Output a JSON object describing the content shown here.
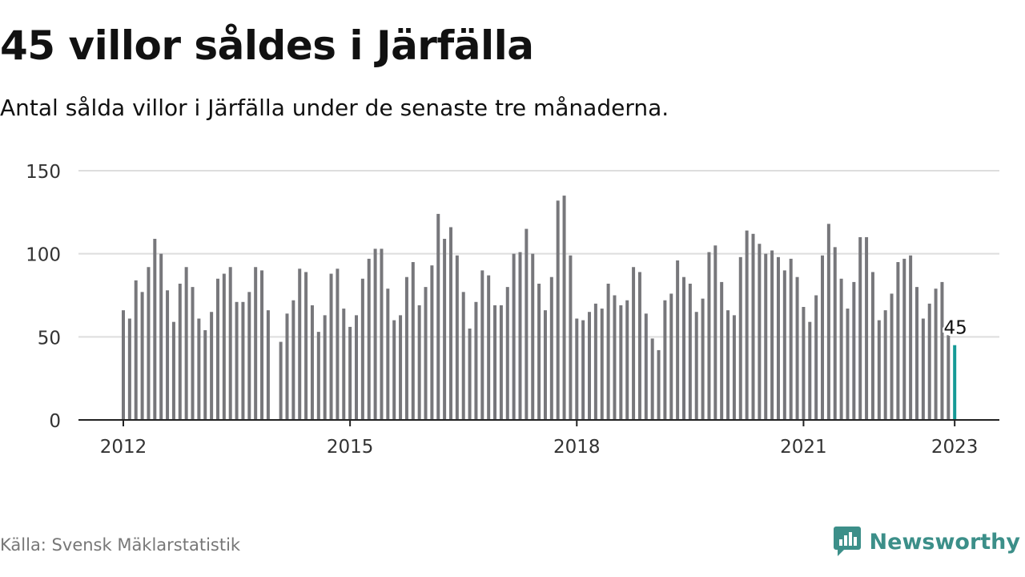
{
  "title": "45 villor såldes i Järfälla",
  "subtitle": "Antal sålda villor i Järfälla under de senaste tre månaderna.",
  "source": "Källa: Svensk Mäklarstatistik",
  "logo": {
    "text": "Newsworthy",
    "icon": "newsworthy-logo-icon"
  },
  "colors": {
    "bar": "#77777b",
    "highlight": "#159a96",
    "grid": "#dddddd",
    "axis": "#222222",
    "brand": "#3c8f89"
  },
  "chart_data": {
    "type": "bar",
    "title": "45 villor såldes i Järfälla",
    "subtitle": "Antal sålda villor i Järfälla under de senaste tre månaderna.",
    "xlabel": "",
    "ylabel": "",
    "ylim": [
      0,
      150
    ],
    "yticks": [
      0,
      50,
      100,
      150
    ],
    "xticks": [
      {
        "label": "2012",
        "year": 2012
      },
      {
        "label": "2015",
        "year": 2015
      },
      {
        "label": "2018",
        "year": 2018
      },
      {
        "label": "2021",
        "year": 2021
      },
      {
        "label": "2023",
        "year": 2023
      }
    ],
    "grid": true,
    "start_month": "2012-01",
    "end_month": "2023-01",
    "values": [
      66,
      61,
      84,
      77,
      92,
      109,
      100,
      78,
      59,
      82,
      92,
      80,
      61,
      54,
      65,
      85,
      88,
      92,
      71,
      71,
      77,
      92,
      90,
      66,
      null,
      47,
      64,
      72,
      91,
      89,
      69,
      53,
      63,
      88,
      91,
      67,
      56,
      63,
      85,
      97,
      103,
      103,
      79,
      60,
      63,
      86,
      95,
      69,
      80,
      93,
      124,
      109,
      116,
      99,
      77,
      55,
      71,
      90,
      87,
      69,
      69,
      80,
      100,
      101,
      115,
      100,
      82,
      66,
      86,
      132,
      135,
      99,
      61,
      60,
      65,
      70,
      67,
      82,
      75,
      69,
      72,
      92,
      89,
      64,
      49,
      42,
      72,
      76,
      96,
      86,
      82,
      65,
      73,
      101,
      105,
      83,
      66,
      63,
      98,
      114,
      112,
      106,
      100,
      102,
      98,
      90,
      97,
      86,
      68,
      59,
      75,
      99,
      118,
      104,
      85,
      67,
      83,
      110,
      110,
      89,
      60,
      66,
      76,
      95,
      97,
      99,
      80,
      61,
      70,
      79,
      83,
      51,
      45
    ],
    "highlight": {
      "label": "45",
      "value": 45
    }
  }
}
